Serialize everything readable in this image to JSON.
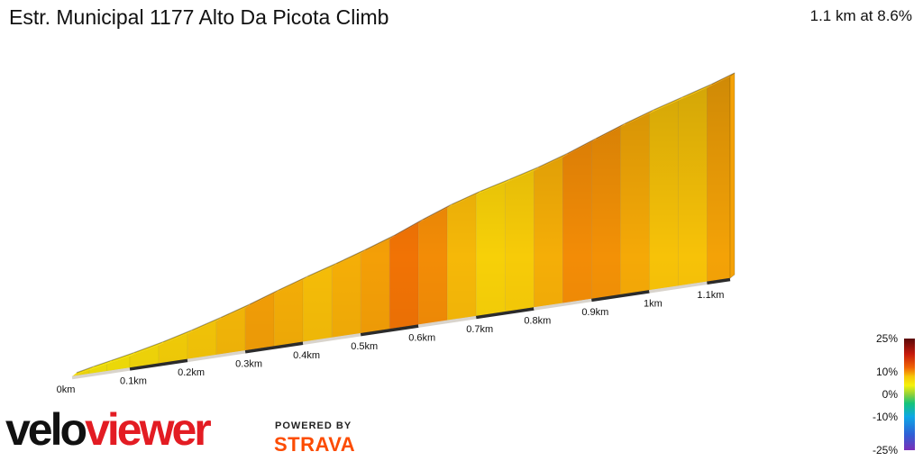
{
  "header": {
    "title": "Estr. Municipal 1177 Alto Da Picota Climb",
    "summary": "1.1 km at 8.6%"
  },
  "chart_data": {
    "type": "area",
    "title": "Estr. Municipal 1177 Alto Da Picota Climb",
    "x_unit": "km",
    "xlim": [
      0,
      1.14
    ],
    "x_tick_labels": [
      "0km",
      "0.1km",
      "0.2km",
      "0.3km",
      "0.4km",
      "0.5km",
      "0.6km",
      "0.7km",
      "0.8km",
      "0.9km",
      "1km",
      "1.1km"
    ],
    "x_ticks": [
      0,
      0.1,
      0.2,
      0.3,
      0.4,
      0.5,
      0.6,
      0.7,
      0.8,
      0.9,
      1.0,
      1.1
    ],
    "distance_km": [
      0,
      0.03,
      0.06,
      0.1,
      0.15,
      0.2,
      0.25,
      0.3,
      0.35,
      0.4,
      0.45,
      0.5,
      0.55,
      0.6,
      0.65,
      0.7,
      0.75,
      0.8,
      0.85,
      0.9,
      0.95,
      1.0,
      1.05,
      1.1,
      1.14
    ],
    "elevation_m": [
      0,
      1.8,
      3.4,
      5.6,
      8.7,
      12.3,
      16.3,
      20.6,
      25.4,
      29.9,
      34.1,
      38.6,
      43.4,
      49.1,
      54.3,
      58.6,
      62.2,
      66.0,
      70.5,
      75.7,
      80.8,
      85.4,
      89.5,
      93.6,
      97.4
    ],
    "gradient_pct": [
      6,
      5.3,
      5.5,
      6.2,
      7.2,
      8,
      8.6,
      9.6,
      9,
      8.4,
      9,
      9.6,
      11.4,
      10.4,
      8.6,
      7.2,
      7.6,
      9,
      10.4,
      10.2,
      9.2,
      8.2,
      8.2,
      9.5
    ],
    "legend": {
      "labels": [
        "25%",
        "10%",
        "0%",
        "-10%",
        "-25%"
      ],
      "values": [
        25,
        10,
        0,
        -10,
        -25
      ],
      "stops": [
        {
          "value": 25,
          "color": "#5a0a0a"
        },
        {
          "value": 18,
          "color": "#c71a0c"
        },
        {
          "value": 12,
          "color": "#f06405"
        },
        {
          "value": 8,
          "color": "#f7c708"
        },
        {
          "value": 4,
          "color": "#f5f20a"
        },
        {
          "value": 0,
          "color": "#8fd13a"
        },
        {
          "value": -4,
          "color": "#14c47a"
        },
        {
          "value": -10,
          "color": "#0ea7e6"
        },
        {
          "value": -18,
          "color": "#2f5fd6"
        },
        {
          "value": -25,
          "color": "#7a2fb8"
        }
      ]
    }
  },
  "brand": {
    "logo_part1": "velo",
    "logo_part2": "viewer",
    "powered_by": "POWERED BY",
    "strava": "STRAVA"
  }
}
